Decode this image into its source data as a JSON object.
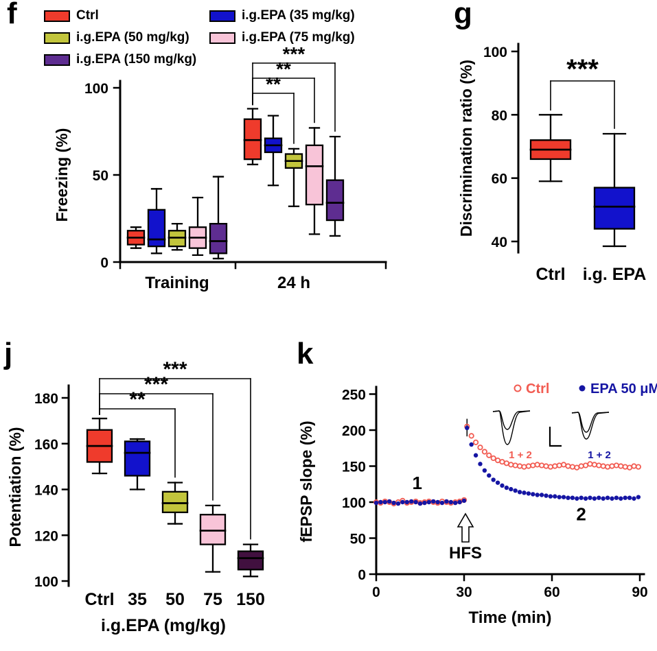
{
  "panels": {
    "f": {
      "label": "f"
    },
    "g": {
      "label": "g"
    },
    "j": {
      "label": "j"
    },
    "k": {
      "label": "k"
    }
  },
  "chart_data": [
    {
      "panel": "f",
      "type": "box",
      "ylabel": "Freezing (%)",
      "ylim": [
        0,
        100
      ],
      "yticks": [
        0,
        50,
        100
      ],
      "groups": [
        "Training",
        "24 h"
      ],
      "series": [
        {
          "name": "Ctrl",
          "color": "#ef3b2c",
          "boxes": [
            [
              8,
              10,
              14,
              18,
              20
            ],
            [
              56,
              59,
              70,
              82,
              88
            ]
          ]
        },
        {
          "name": "i.g.EPA (35 mg/kg)",
          "color": "#1212cc",
          "boxes": [
            [
              5,
              9,
              13,
              30,
              42
            ],
            [
              44,
              63,
              67,
              71,
              84
            ]
          ]
        },
        {
          "name": "i.g.EPA (50 mg/kg)",
          "color": "#c2c53c",
          "boxes": [
            [
              7,
              9,
              14,
              18,
              22
            ],
            [
              32,
              54,
              58,
              62,
              65
            ]
          ]
        },
        {
          "name": "i.g.EPA (75 mg/kg)",
          "color": "#f8c4d8",
          "boxes": [
            [
              4,
              8,
              14,
              20,
              37
            ],
            [
              16,
              33,
              55,
              67,
              77
            ]
          ]
        },
        {
          "name": "i.g.EPA (150 mg/kg)",
          "color": "#5e2d91",
          "boxes": [
            [
              2,
              5,
              12,
              22,
              49
            ],
            [
              15,
              24,
              34,
              47,
              72
            ]
          ]
        }
      ],
      "significance": [
        {
          "from": 0,
          "to": 2,
          "label": "**"
        },
        {
          "from": 0,
          "to": 3,
          "label": "**"
        },
        {
          "from": 0,
          "to": 4,
          "label": "***"
        }
      ]
    },
    {
      "panel": "g",
      "type": "box",
      "ylabel": "Discrimination ratio (%)",
      "ylim": [
        35,
        102
      ],
      "yticks": [
        40,
        60,
        80,
        100
      ],
      "categories": [
        "Ctrl",
        "i.g. EPA"
      ],
      "boxes": [
        {
          "name": "Ctrl",
          "color": "#ef3b2c",
          "values": [
            59,
            66,
            69,
            72,
            80
          ]
        },
        {
          "name": "i.g. EPA",
          "color": "#1212cc",
          "values": [
            38.5,
            44,
            51,
            57,
            74
          ]
        }
      ],
      "significance": [
        {
          "from": 0,
          "to": 1,
          "label": "***"
        }
      ]
    },
    {
      "panel": "j",
      "type": "box",
      "ylabel": "Potentiation (%)",
      "xlabel": "i.g.EPA (mg/kg)",
      "ylim": [
        95,
        185
      ],
      "yticks": [
        100,
        120,
        140,
        160,
        180
      ],
      "categories": [
        "Ctrl",
        "35",
        "50",
        "75",
        "150"
      ],
      "boxes": [
        {
          "name": "Ctrl",
          "color": "#ef3b2c",
          "values": [
            147,
            152,
            159,
            166,
            171
          ]
        },
        {
          "name": "35",
          "color": "#1212cc",
          "values": [
            140,
            146,
            156,
            161,
            162
          ]
        },
        {
          "name": "50",
          "color": "#c2c53c",
          "values": [
            125,
            130,
            134,
            139,
            143
          ]
        },
        {
          "name": "75",
          "color": "#f8c4d8",
          "values": [
            104,
            116,
            122,
            129,
            133
          ]
        },
        {
          "name": "150",
          "color": "#41103f",
          "values": [
            102,
            105,
            110,
            113,
            116
          ]
        }
      ],
      "significance": [
        {
          "from": 0,
          "to": 2,
          "label": "**"
        },
        {
          "from": 0,
          "to": 3,
          "label": "***"
        },
        {
          "from": 0,
          "to": 4,
          "label": "***"
        }
      ]
    },
    {
      "panel": "k",
      "type": "line",
      "ylabel": "fEPSP slope (%)",
      "xlabel": "Time (min)",
      "xlim": [
        0,
        90
      ],
      "ylim": [
        0,
        250
      ],
      "xticks": [
        0,
        30,
        60,
        90
      ],
      "yticks": [
        0,
        50,
        100,
        150,
        200,
        250
      ],
      "hfs_label": "HFS",
      "annotations": [
        {
          "text": "1",
          "x": 14,
          "y": 118
        },
        {
          "text": "2",
          "x": 70,
          "y": 75
        }
      ],
      "inset_labels": {
        "ctrl": "1 + 2",
        "epa": "1 + 2"
      },
      "series": [
        {
          "name": "Ctrl",
          "color": "#f25c52",
          "marker": "open",
          "t": [
            0,
            1.5,
            3,
            4.5,
            6,
            7.5,
            9,
            10.5,
            12,
            13.5,
            15,
            16.5,
            18,
            19.5,
            21,
            22.5,
            24,
            25.5,
            27,
            28.5,
            30,
            31,
            32.5,
            34,
            35.5,
            37,
            38.5,
            40,
            41.5,
            43,
            44.5,
            46,
            47.5,
            49,
            50.5,
            52,
            53.5,
            55,
            56.5,
            58,
            59.5,
            61,
            62.5,
            64,
            65.5,
            67,
            68.5,
            70,
            71.5,
            73,
            74.5,
            76,
            77.5,
            79,
            80.5,
            82,
            83.5,
            85,
            86.5,
            88,
            89.5
          ],
          "v": [
            100,
            99,
            101,
            100,
            98,
            100,
            102,
            99,
            100,
            101,
            99,
            100,
            101,
            100,
            99,
            101,
            100,
            99,
            100,
            101,
            103,
            205,
            192,
            183,
            176,
            170,
            165,
            161,
            158,
            156,
            154,
            152,
            151,
            150,
            149,
            150,
            151,
            152,
            151,
            150,
            149,
            150,
            151,
            152,
            150,
            149,
            148,
            150,
            151,
            153,
            152,
            151,
            150,
            149,
            150,
            151,
            150,
            149,
            148,
            150,
            149
          ]
        },
        {
          "name": "EPA 50 μM",
          "color": "#1515a3",
          "marker": "filled",
          "t": [
            0,
            1.5,
            3,
            4.5,
            6,
            7.5,
            9,
            10.5,
            12,
            13.5,
            15,
            16.5,
            18,
            19.5,
            21,
            22.5,
            24,
            25.5,
            27,
            28.5,
            30,
            31,
            32.5,
            34,
            35.5,
            37,
            38.5,
            40,
            41.5,
            43,
            44.5,
            46,
            47.5,
            49,
            50.5,
            52,
            53.5,
            55,
            56.5,
            58,
            59.5,
            61,
            62.5,
            64,
            65.5,
            67,
            68.5,
            70,
            71.5,
            73,
            74.5,
            76,
            77.5,
            79,
            80.5,
            82,
            83.5,
            85,
            86.5,
            88,
            89.5
          ],
          "v": [
            99,
            100,
            100,
            101,
            99,
            98,
            100,
            100,
            101,
            100,
            98,
            99,
            100,
            101,
            100,
            99,
            101,
            100,
            99,
            100,
            102,
            203,
            180,
            165,
            153,
            144,
            137,
            131,
            127,
            123,
            120,
            118,
            116,
            114,
            113,
            112,
            111,
            110,
            110,
            109,
            108,
            108,
            107,
            107,
            106,
            106,
            105,
            106,
            105,
            106,
            105,
            106,
            105,
            106,
            105,
            106,
            105,
            106,
            106,
            105,
            107
          ]
        }
      ]
    }
  ]
}
